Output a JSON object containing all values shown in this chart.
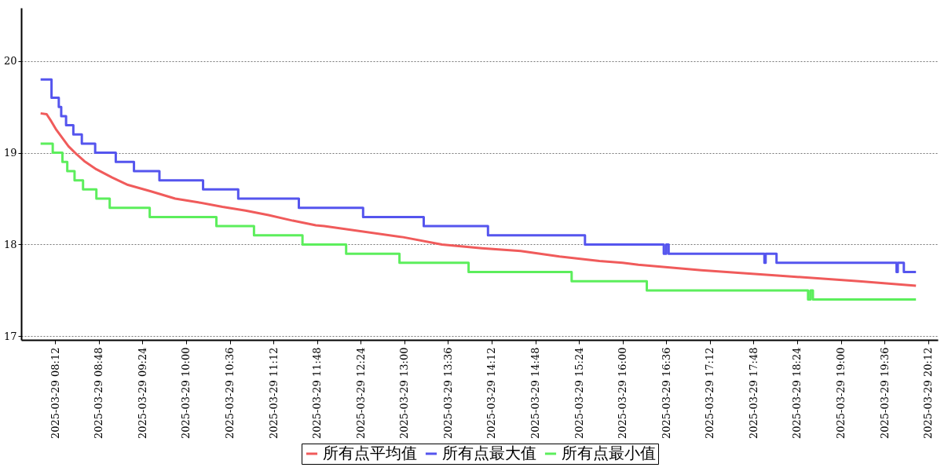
{
  "chart_data": {
    "type": "line",
    "xlim": [
      "2025-03-29T07:44",
      "2025-03-29T20:20"
    ],
    "xticks": [
      {
        "value": "2025-03-29T08:12",
        "label": "2025-03-29 08:12"
      },
      {
        "value": "2025-03-29T08:48",
        "label": "2025-03-29 08:48"
      },
      {
        "value": "2025-03-29T09:24",
        "label": "2025-03-29 09:24"
      },
      {
        "value": "2025-03-29T10:00",
        "label": "2025-03-29 10:00"
      },
      {
        "value": "2025-03-29T10:36",
        "label": "2025-03-29 10:36"
      },
      {
        "value": "2025-03-29T11:12",
        "label": "2025-03-29 11:12"
      },
      {
        "value": "2025-03-29T11:48",
        "label": "2025-03-29 11:48"
      },
      {
        "value": "2025-03-29T12:24",
        "label": "2025-03-29 12:24"
      },
      {
        "value": "2025-03-29T13:00",
        "label": "2025-03-29 13:00"
      },
      {
        "value": "2025-03-29T13:36",
        "label": "2025-03-29 13:36"
      },
      {
        "value": "2025-03-29T14:12",
        "label": "2025-03-29 14:12"
      },
      {
        "value": "2025-03-29T14:48",
        "label": "2025-03-29 14:48"
      },
      {
        "value": "2025-03-29T15:24",
        "label": "2025-03-29 15:24"
      },
      {
        "value": "2025-03-29T16:00",
        "label": "2025-03-29 16:00"
      },
      {
        "value": "2025-03-29T16:36",
        "label": "2025-03-29 16:36"
      },
      {
        "value": "2025-03-29T17:12",
        "label": "2025-03-29 17:12"
      },
      {
        "value": "2025-03-29T17:48",
        "label": "2025-03-29 17:48"
      },
      {
        "value": "2025-03-29T18:24",
        "label": "2025-03-29 18:24"
      },
      {
        "value": "2025-03-29T19:00",
        "label": "2025-03-29 19:00"
      },
      {
        "value": "2025-03-29T19:36",
        "label": "2025-03-29 19:36"
      },
      {
        "value": "2025-03-29T20:12",
        "label": "2025-03-29 20:12"
      }
    ],
    "ylim": [
      16.96,
      20.58
    ],
    "yticks": [
      17,
      18,
      19,
      20
    ],
    "grid": "y",
    "legend": "bottom",
    "series": [
      {
        "name": "所有点平均值",
        "type": "line",
        "color": "#f05b5b",
        "x": [
          "2025-03-29T08:00",
          "2025-03-29T08:05",
          "2025-03-29T08:08",
          "2025-03-29T08:13",
          "2025-03-29T08:18",
          "2025-03-29T08:23",
          "2025-03-29T08:30",
          "2025-03-29T08:36",
          "2025-03-29T08:46",
          "2025-03-29T08:59",
          "2025-03-29T09:12",
          "2025-03-29T09:31",
          "2025-03-29T09:51",
          "2025-03-29T10:10",
          "2025-03-29T10:30",
          "2025-03-29T10:49",
          "2025-03-29T11:08",
          "2025-03-29T11:28",
          "2025-03-29T11:47",
          "2025-03-29T11:54",
          "2025-03-29T12:59",
          "2025-03-29T13:31",
          "2025-03-29T14:04",
          "2025-03-29T14:36",
          "2025-03-29T15:08",
          "2025-03-29T15:41",
          "2025-03-29T16:00",
          "2025-03-29T16:13",
          "2025-03-29T17:05",
          "2025-03-29T18:10",
          "2025-03-29T19:15",
          "2025-03-29T20:02"
        ],
        "values": [
          19.43,
          19.42,
          19.36,
          19.25,
          19.16,
          19.07,
          18.98,
          18.91,
          18.82,
          18.73,
          18.65,
          18.58,
          18.5,
          18.46,
          18.41,
          18.37,
          18.32,
          18.26,
          18.21,
          18.2,
          18.08,
          18.0,
          17.96,
          17.93,
          17.87,
          17.82,
          17.8,
          17.78,
          17.72,
          17.66,
          17.6,
          17.55
        ]
      },
      {
        "name": "所有点最大值",
        "type": "step",
        "color": "#5555ee",
        "x": [
          "2025-03-29T08:00",
          "2025-03-29T08:09",
          "2025-03-29T08:15",
          "2025-03-29T08:17",
          "2025-03-29T08:21",
          "2025-03-29T08:27",
          "2025-03-29T08:34",
          "2025-03-29T08:45",
          "2025-03-29T09:02",
          "2025-03-29T09:17",
          "2025-03-29T09:38",
          "2025-03-29T10:14",
          "2025-03-29T10:43",
          "2025-03-29T11:33",
          "2025-03-29T12:26",
          "2025-03-29T13:16",
          "2025-03-29T14:09",
          "2025-03-29T15:29",
          "2025-03-29T16:34",
          "2025-03-29T16:36",
          "2025-03-29T16:38",
          "2025-03-29T17:57",
          "2025-03-29T17:58",
          "2025-03-29T18:07",
          "2025-03-29T19:46",
          "2025-03-29T19:47",
          "2025-03-29T19:52",
          "2025-03-29T20:02"
        ],
        "values": [
          19.8,
          19.6,
          19.5,
          19.4,
          19.3,
          19.2,
          19.1,
          19.0,
          18.9,
          18.8,
          18.7,
          18.6,
          18.5,
          18.4,
          18.3,
          18.2,
          18.1,
          18.0,
          17.9,
          18.0,
          17.9,
          17.8,
          17.9,
          17.8,
          17.7,
          17.8,
          17.7,
          17.7
        ]
      },
      {
        "name": "所有点最小值",
        "type": "step",
        "color": "#5cee5c",
        "x": [
          "2025-03-29T08:00",
          "2025-03-29T08:10",
          "2025-03-29T08:18",
          "2025-03-29T08:22",
          "2025-03-29T08:28",
          "2025-03-29T08:35",
          "2025-03-29T08:46",
          "2025-03-29T08:57",
          "2025-03-29T09:30",
          "2025-03-29T10:25",
          "2025-03-29T10:56",
          "2025-03-29T11:36",
          "2025-03-29T12:12",
          "2025-03-29T12:56",
          "2025-03-29T13:53",
          "2025-03-29T15:18",
          "2025-03-29T16:20",
          "2025-03-29T18:33",
          "2025-03-29T18:35",
          "2025-03-29T18:37",
          "2025-03-29T20:02"
        ],
        "values": [
          19.1,
          19.0,
          18.9,
          18.8,
          18.7,
          18.6,
          18.5,
          18.4,
          18.3,
          18.2,
          18.1,
          18.0,
          17.9,
          17.8,
          17.7,
          17.6,
          17.5,
          17.4,
          17.5,
          17.4,
          17.4
        ]
      }
    ]
  }
}
